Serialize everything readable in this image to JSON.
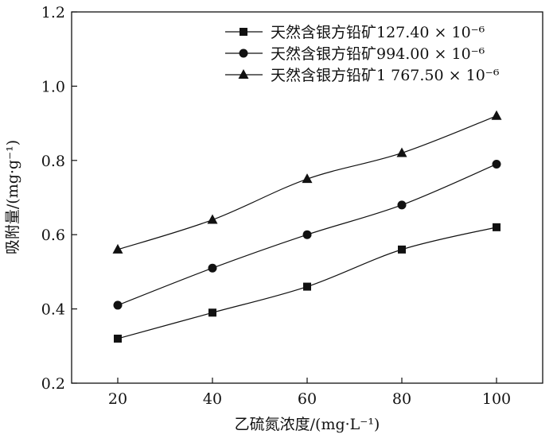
{
  "chart_data": {
    "type": "line",
    "title": "",
    "xlabel": "乙硫氮浓度/(mg·L⁻¹)",
    "ylabel": "吸附量/(mg·g⁻¹)",
    "x": [
      20,
      40,
      60,
      80,
      100
    ],
    "xlim": [
      0,
      110
    ],
    "ylim": [
      0.2,
      1.2
    ],
    "xticks": [
      "20",
      "40",
      "60",
      "80",
      "100"
    ],
    "yticks": [
      "0.2",
      "0.4",
      "0.6",
      "0.8",
      "1.0",
      "1.2"
    ],
    "grid": false,
    "legend_position": "top-right",
    "series": [
      {
        "name": "天然含银方铅矿127.40 × 10⁻⁶",
        "marker": "square",
        "values": [
          0.32,
          0.39,
          0.46,
          0.56,
          0.62
        ]
      },
      {
        "name": "天然含银方铅矿994.00 × 10⁻⁶",
        "marker": "circle",
        "values": [
          0.41,
          0.51,
          0.6,
          0.68,
          0.79
        ]
      },
      {
        "name": "天然含银方铅矿1 767.50 × 10⁻⁶",
        "marker": "triangle",
        "values": [
          0.56,
          0.64,
          0.75,
          0.82,
          0.92
        ]
      }
    ],
    "color": "#111111"
  }
}
